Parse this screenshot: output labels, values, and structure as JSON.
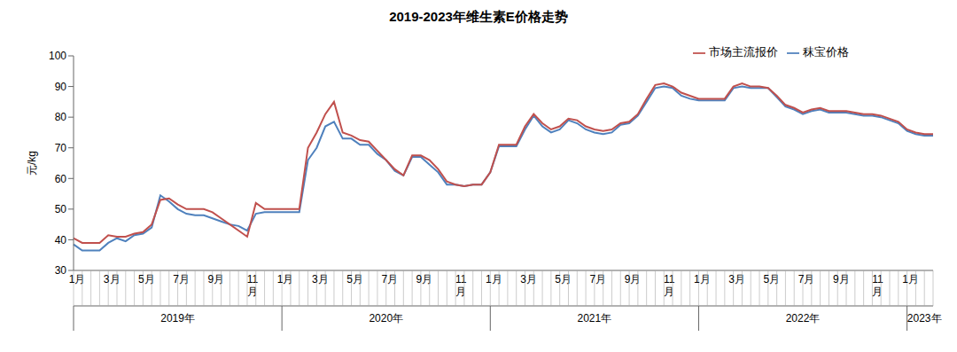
{
  "chart_data": {
    "type": "line",
    "title": "2019-2023年维生素E价格走势",
    "y_label": "元/kg",
    "categories": [
      "1月",
      null,
      null,
      null,
      "3月",
      null,
      null,
      null,
      "5月",
      null,
      null,
      null,
      "7月",
      null,
      null,
      null,
      "9月",
      null,
      null,
      null,
      "11月",
      null,
      null,
      null,
      "1月",
      null,
      null,
      null,
      "3月",
      null,
      null,
      null,
      "5月",
      null,
      null,
      null,
      "7月",
      null,
      null,
      null,
      "9月",
      null,
      null,
      null,
      "11月",
      null,
      null,
      null,
      "1月",
      null,
      null,
      null,
      "3月",
      null,
      null,
      null,
      "5月",
      null,
      null,
      null,
      "7月",
      null,
      null,
      null,
      "9月",
      null,
      null,
      null,
      "11月",
      null,
      null,
      null,
      "1月",
      null,
      null,
      null,
      "3月",
      null,
      null,
      null,
      "5月",
      null,
      null,
      null,
      "7月",
      null,
      null,
      null,
      "9月",
      null,
      null,
      null,
      "11月",
      null,
      null,
      null,
      "1月",
      null,
      null,
      null
    ],
    "x_groups": [
      "2019年",
      "2020年",
      "2021年",
      "2022年",
      "2023年"
    ],
    "series": [
      {
        "name": "秣宝价格",
        "color": "#4f81bd",
        "values": [
          38.5,
          36.5,
          36.5,
          36.5,
          39,
          40.5,
          39.5,
          41.5,
          42,
          44,
          54.5,
          52.5,
          50,
          48.5,
          48,
          48,
          47,
          46,
          45,
          44.5,
          43,
          48.5,
          49,
          49,
          49,
          49,
          49,
          66,
          70,
          77,
          78.5,
          73,
          73,
          71,
          71,
          68,
          66,
          62.5,
          61,
          67,
          67,
          64.5,
          62,
          58,
          58,
          57.5,
          58,
          58,
          62,
          70.5,
          70.5,
          70.5,
          76,
          80.5,
          77,
          75,
          76,
          79,
          78,
          76,
          75,
          74.5,
          75,
          77.5,
          78,
          80.5,
          85,
          89.5,
          90,
          89.5,
          87,
          86,
          85.5,
          85.5,
          85.5,
          85.5,
          89.5,
          90,
          89.5,
          89.5,
          89.5,
          86.5,
          83.5,
          82.5,
          81,
          82,
          82.5,
          81.5,
          81.5,
          81.5,
          81,
          80.5,
          80.5,
          80,
          79,
          78,
          75.5,
          74.5,
          74,
          74
        ]
      },
      {
        "name": "市场主流报价",
        "color": "#c0504d",
        "values": [
          40.5,
          39,
          39,
          39,
          41.5,
          41,
          41,
          42,
          42.5,
          45,
          53,
          53.5,
          51.5,
          50,
          50,
          50,
          49,
          47,
          45,
          43,
          41,
          52,
          50,
          50,
          50,
          50,
          50,
          70,
          75,
          81,
          85,
          75,
          74,
          72.5,
          72,
          69,
          66,
          63,
          61,
          67.5,
          67.5,
          66,
          63,
          59,
          58,
          57.5,
          58,
          58,
          62,
          71,
          71,
          71,
          77,
          81,
          78,
          76,
          77,
          79.5,
          79,
          77,
          76,
          75.5,
          76,
          78,
          78.5,
          81,
          86,
          90.5,
          91,
          90,
          88,
          87,
          86,
          86,
          86,
          86,
          90,
          91,
          90,
          90,
          89.5,
          87,
          84,
          83,
          81.5,
          82.5,
          83,
          82,
          82,
          82,
          81.5,
          81,
          81,
          80.5,
          79.5,
          78.5,
          76,
          75,
          74.5,
          74.5
        ]
      }
    ],
    "ylim": [
      30,
      100
    ],
    "yticks": [
      30,
      40,
      50,
      60,
      70,
      80,
      90,
      100
    ],
    "grid": false,
    "legend": "top right"
  }
}
